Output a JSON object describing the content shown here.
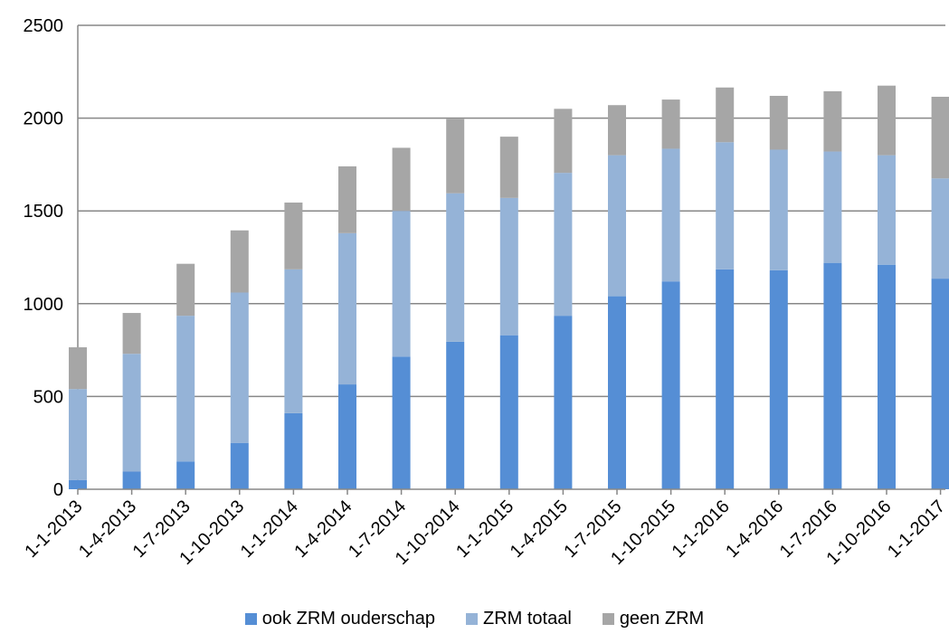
{
  "chart_data": {
    "type": "bar",
    "stacked": true,
    "categories": [
      "1-1-2013",
      "1-4-2013",
      "1-7-2013",
      "1-10-2013",
      "1-1-2014",
      "1-4-2014",
      "1-7-2014",
      "1-10-2014",
      "1-1-2015",
      "1-4-2015",
      "1-7-2015",
      "1-10-2015",
      "1-1-2016",
      "1-4-2016",
      "1-7-2016",
      "1-10-2016",
      "1-1-2017"
    ],
    "series": [
      {
        "name": "ook ZRM ouderschap",
        "color": "#558ED5",
        "values": [
          50,
          95,
          150,
          250,
          410,
          565,
          715,
          795,
          830,
          935,
          1040,
          1120,
          1185,
          1180,
          1220,
          1210,
          1135
        ]
      },
      {
        "name": "ZRM totaal",
        "color": "#95B3D7",
        "values": [
          490,
          635,
          785,
          810,
          775,
          815,
          785,
          800,
          740,
          770,
          760,
          715,
          685,
          650,
          600,
          590,
          540
        ]
      },
      {
        "name": "geen ZRM",
        "color": "#A6A6A6",
        "values": [
          225,
          220,
          280,
          335,
          360,
          360,
          340,
          400,
          330,
          345,
          270,
          265,
          295,
          290,
          325,
          375,
          440
        ]
      }
    ],
    "ylim": [
      0,
      2500
    ],
    "yticks": [
      0,
      500,
      1000,
      1500,
      2000,
      2500
    ],
    "grid": true,
    "legend": "bottom-center",
    "title": "",
    "xlabel": "",
    "ylabel": ""
  }
}
